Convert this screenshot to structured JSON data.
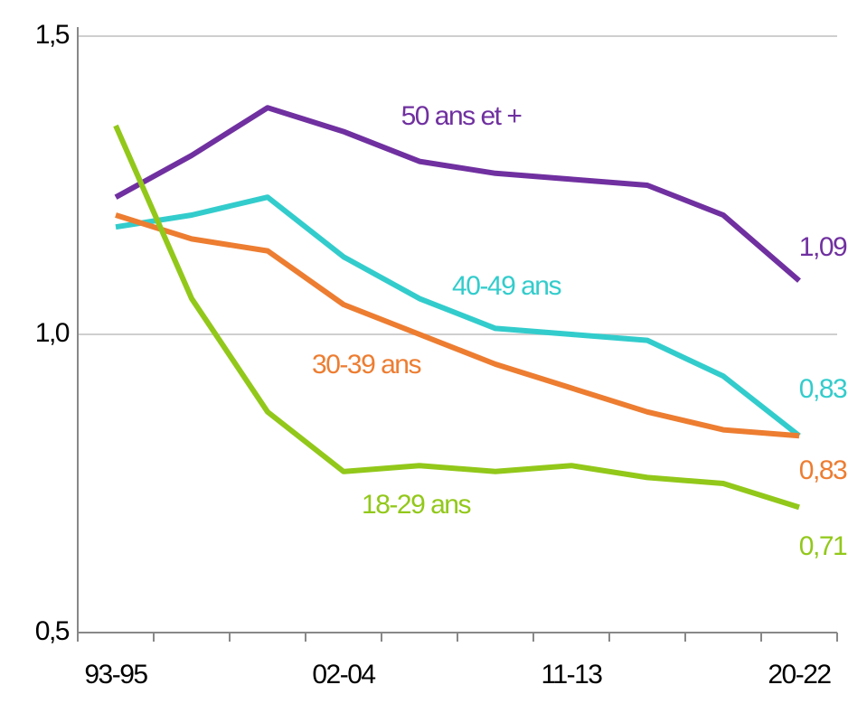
{
  "chart_data": {
    "type": "line",
    "categories": [
      "93-95",
      null,
      null,
      "02-04",
      null,
      null,
      "11-13",
      null,
      null,
      "20-22"
    ],
    "ylim": [
      0.5,
      1.5
    ],
    "yticks": [
      {
        "value": 0.5,
        "label": "0,5"
      },
      {
        "value": 1.0,
        "label": "1,0"
      },
      {
        "value": 1.5,
        "label": "1,5"
      }
    ],
    "grid": true,
    "series": [
      {
        "name": "50 ans et +",
        "color": "#7030a0",
        "values": [
          1.23,
          1.3,
          1.38,
          1.34,
          1.29,
          1.27,
          1.26,
          1.25,
          1.2,
          1.09
        ],
        "value_labels": [
          null,
          null,
          null,
          null,
          null,
          null,
          null,
          null,
          null,
          "1,09"
        ]
      },
      {
        "name": "40-49 ans",
        "color": "#33cccc",
        "values": [
          1.18,
          1.2,
          1.23,
          1.13,
          1.06,
          1.01,
          1.0,
          0.99,
          0.93,
          0.83
        ],
        "value_labels": [
          null,
          null,
          null,
          null,
          null,
          null,
          null,
          null,
          null,
          "0,83"
        ]
      },
      {
        "name": "30-39 ans",
        "color": "#ed7d31",
        "values": [
          1.2,
          1.16,
          1.14,
          1.05,
          1.0,
          0.95,
          0.91,
          0.87,
          0.84,
          0.83
        ],
        "value_labels": [
          null,
          null,
          null,
          null,
          null,
          null,
          null,
          null,
          null,
          "0,83"
        ]
      },
      {
        "name": "18-29 ans",
        "color": "#92c81a",
        "values": [
          1.35,
          1.06,
          0.87,
          0.77,
          0.78,
          0.77,
          0.78,
          0.76,
          0.75,
          0.71
        ],
        "value_labels": [
          null,
          null,
          null,
          null,
          null,
          null,
          null,
          null,
          null,
          "0,71"
        ]
      }
    ]
  }
}
